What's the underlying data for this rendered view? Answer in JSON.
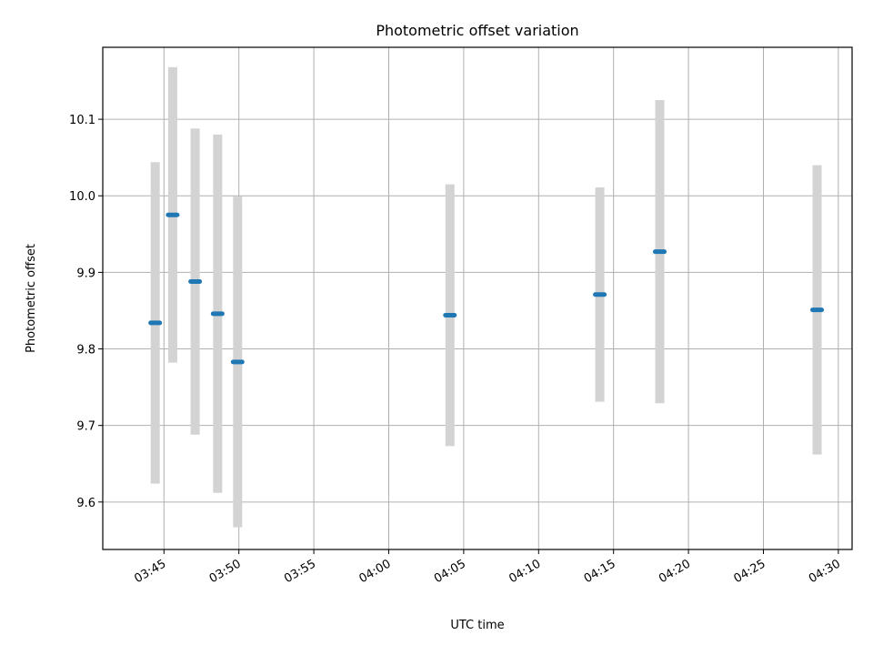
{
  "chart_data": {
    "type": "scatter",
    "title": "Photometric offset variation",
    "xlabel": "UTC time",
    "ylabel": "Photometric offset",
    "x_tick_labels": [
      "03:45",
      "03:50",
      "03:55",
      "04:00",
      "04:05",
      "04:10",
      "04:15",
      "04:20",
      "04:25",
      "04:30"
    ],
    "y_ticks": [
      9.6,
      9.7,
      9.8,
      9.9,
      10.0,
      10.1
    ],
    "y_tick_labels": [
      "9.6",
      "9.7",
      "9.8",
      "9.9",
      "10.0",
      "10.1"
    ],
    "xlim": [
      "03:40:55",
      "04:30:55"
    ],
    "ylim": [
      9.538,
      10.194
    ],
    "grid": true,
    "series": [
      {
        "x": [
          "03:44:25",
          "03:45:35",
          "03:47:05",
          "03:48:35",
          "03:49:55",
          "04:04:05",
          "04:14:05",
          "04:18:05",
          "04:28:35"
        ],
        "y": [
          9.834,
          9.975,
          9.888,
          9.846,
          9.783,
          9.844,
          9.871,
          9.927,
          9.851
        ],
        "yerr": [
          0.21,
          0.193,
          0.2,
          0.234,
          0.216,
          0.171,
          0.14,
          0.198,
          0.189
        ],
        "color": "#1f77b4",
        "errorbar_color": "#d3d3d3"
      }
    ]
  }
}
